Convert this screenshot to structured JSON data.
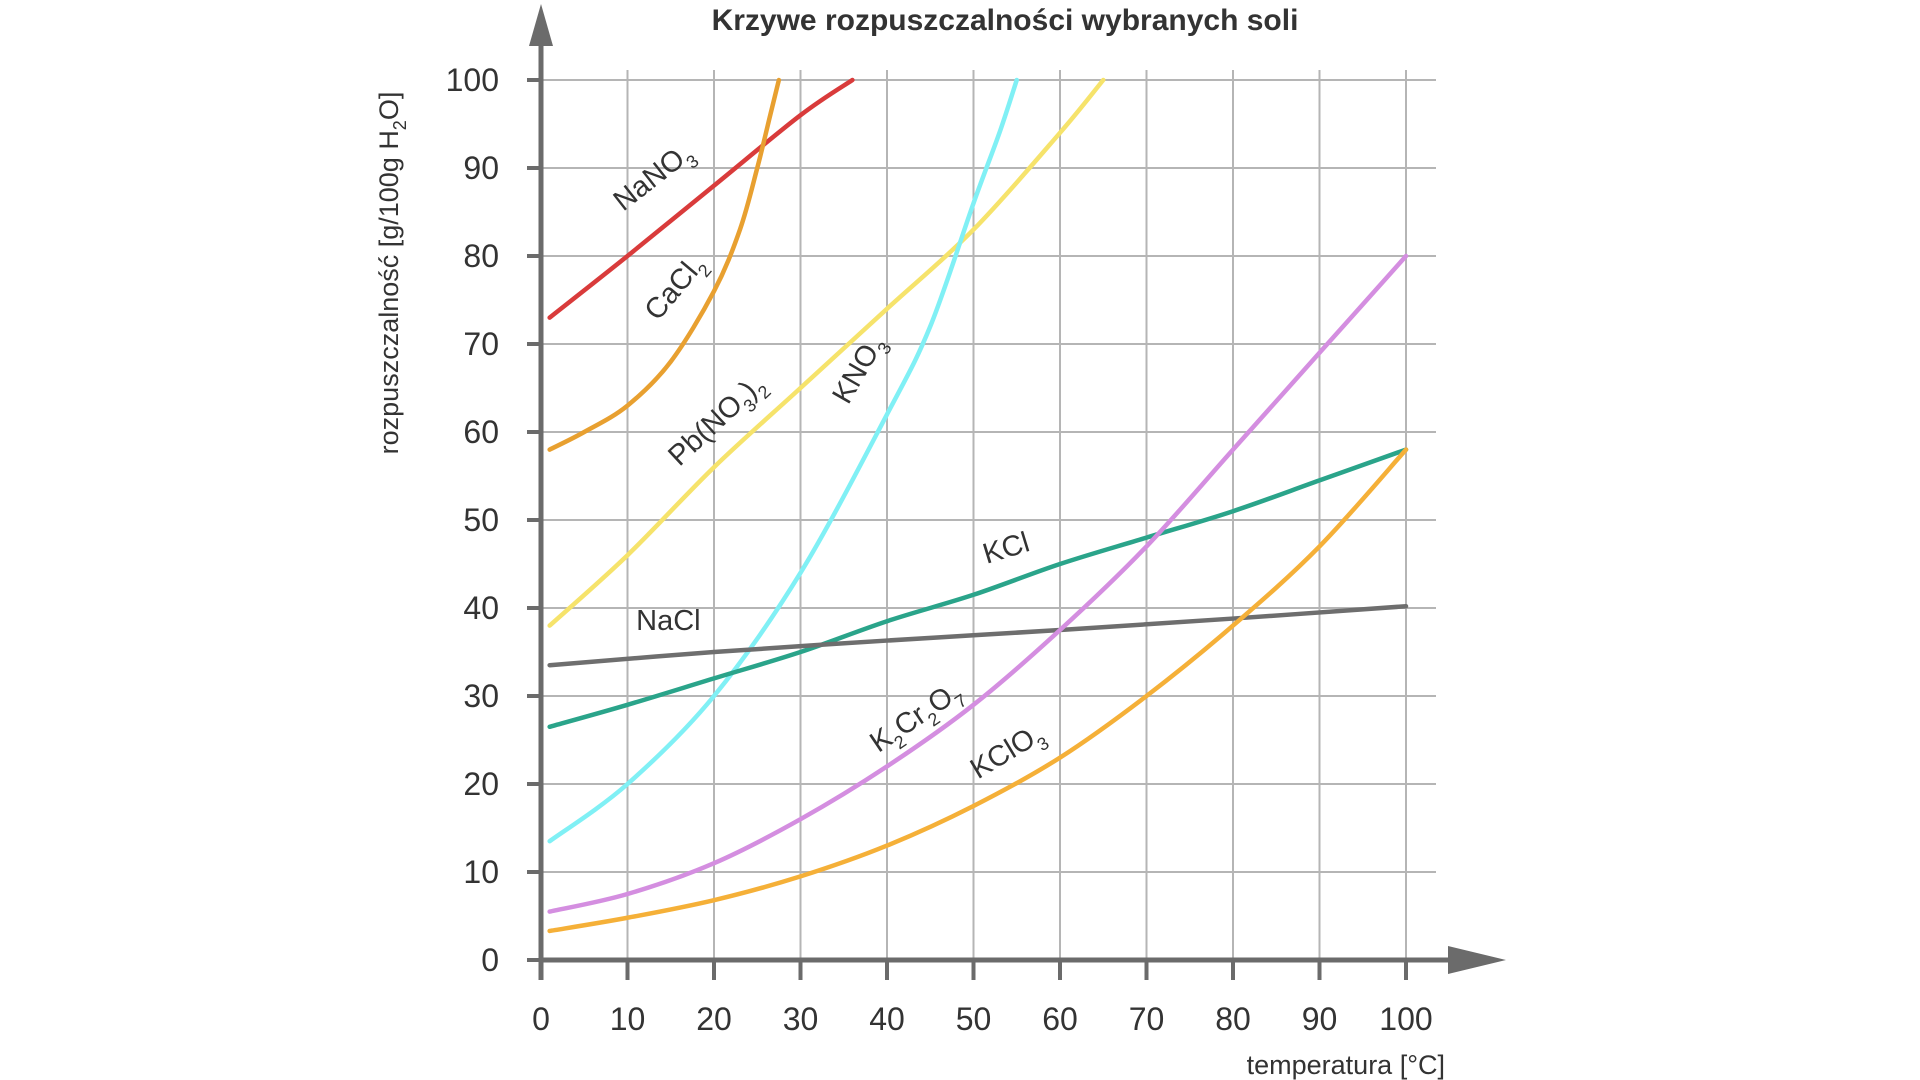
{
  "chart_data": {
    "type": "line",
    "title": "Krzywe rozpuszczalności wybranych soli",
    "xlabel": "temperatura [°C]",
    "ylabel_parts": {
      "main": "rozpuszczalność [g/100g H",
      "sub": "2",
      "tail": "O]"
    },
    "xlim": [
      0,
      100
    ],
    "ylim": [
      0,
      100
    ],
    "x_ticks": [
      0,
      10,
      20,
      30,
      40,
      50,
      60,
      70,
      80,
      90,
      100
    ],
    "y_ticks": [
      0,
      10,
      20,
      30,
      40,
      50,
      60,
      70,
      80,
      90,
      100
    ],
    "grid": true,
    "series": [
      {
        "name": "NaNO3",
        "color": "#d93b3b",
        "x": [
          1,
          10,
          20,
          30,
          36
        ],
        "y": [
          73,
          80,
          88,
          96,
          100
        ]
      },
      {
        "name": "CaCl2",
        "color": "#e8a030",
        "x": [
          1,
          5,
          10,
          15,
          20,
          23,
          25,
          26.5,
          27.5
        ],
        "y": [
          58,
          60,
          63,
          68,
          76,
          83,
          90,
          96,
          100
        ]
      },
      {
        "name": "Pb(NO3)2",
        "color": "#f6e36b",
        "x": [
          1,
          10,
          20,
          30,
          40,
          50,
          60,
          65
        ],
        "y": [
          38,
          46,
          56,
          65,
          74,
          83,
          94,
          100
        ]
      },
      {
        "name": "KNO3",
        "color": "#80f0f5",
        "x": [
          1,
          10,
          20,
          30,
          40,
          45,
          50,
          53,
          55
        ],
        "y": [
          13.5,
          20,
          30,
          44,
          62,
          72,
          86,
          94,
          100
        ]
      },
      {
        "name": "KCl",
        "color": "#2aa48a",
        "x": [
          1,
          10,
          20,
          30,
          40,
          50,
          60,
          70,
          80,
          90,
          100
        ],
        "y": [
          26.5,
          29,
          32,
          35,
          38.5,
          41.5,
          45,
          48,
          51,
          54.5,
          58
        ]
      },
      {
        "name": "NaCl",
        "color": "#6e6e6e",
        "x": [
          1,
          20,
          40,
          60,
          80,
          100
        ],
        "y": [
          33.5,
          35,
          36.3,
          37.5,
          38.8,
          40.2
        ]
      },
      {
        "name": "K2Cr2O7",
        "color": "#d48ee0",
        "x": [
          1,
          10,
          20,
          30,
          40,
          50,
          60,
          70,
          80,
          90,
          100
        ],
        "y": [
          5.5,
          7.5,
          11,
          16,
          22,
          29,
          37.5,
          47,
          58,
          69,
          80
        ]
      },
      {
        "name": "KClO3",
        "color": "#f5b038",
        "x": [
          1,
          10,
          20,
          30,
          40,
          50,
          60,
          70,
          80,
          90,
          100
        ],
        "y": [
          3.3,
          4.8,
          6.8,
          9.5,
          13,
          17.5,
          23,
          30,
          38,
          47,
          58
        ]
      }
    ],
    "label_parts": {
      "NaNO3": [
        [
          "NaNO",
          ""
        ],
        [
          "3",
          "sub"
        ]
      ],
      "CaCl2": [
        [
          "CaCl",
          ""
        ],
        [
          "2",
          "sub"
        ]
      ],
      "Pb(NO3)2": [
        [
          "Pb(NO",
          ""
        ],
        [
          "3",
          "sub"
        ],
        [
          ")",
          ""
        ],
        [
          "2",
          "sub"
        ]
      ],
      "KNO3": [
        [
          "KNO",
          ""
        ],
        [
          "3",
          "sub"
        ]
      ],
      "KCl": [
        [
          "KCl",
          ""
        ]
      ],
      "NaCl": [
        [
          "NaCl",
          ""
        ]
      ],
      "K2Cr2O7": [
        [
          "K",
          ""
        ],
        [
          "2",
          "sub"
        ],
        [
          "Cr",
          ""
        ],
        [
          "2",
          "sub"
        ],
        [
          "O",
          ""
        ],
        [
          "7",
          "sub"
        ]
      ],
      "KClO3": [
        [
          "KClO",
          ""
        ],
        [
          "3",
          "sub"
        ]
      ]
    },
    "axis_color": "#6b6b6b",
    "grid_color": "#b5b5b5"
  }
}
